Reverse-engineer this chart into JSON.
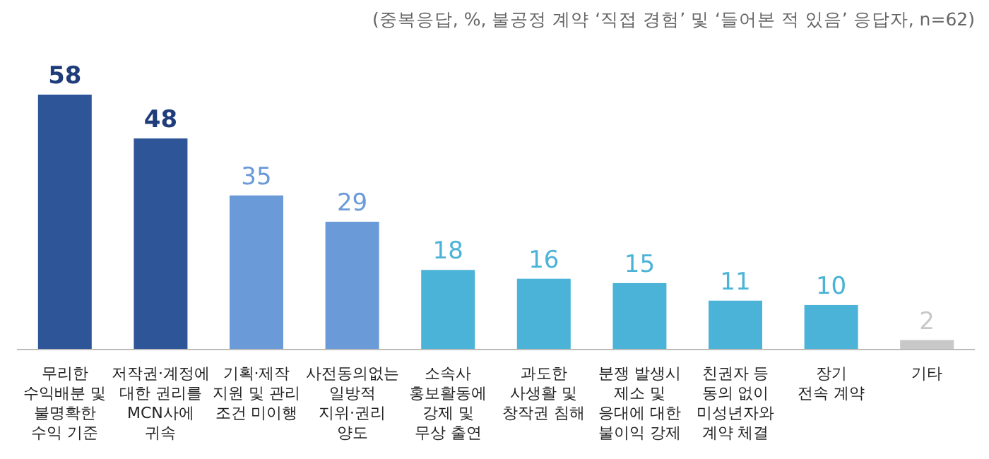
{
  "chart_data": {
    "type": "bar",
    "subtitle": "(중복응답, %, 불공정 계약 ‘직접 경험’ 및 ‘들어본 적 있음’ 응답자, n=62)",
    "categories": [
      "무리한\n수익배분 및\n불명확한\n수익 기준",
      "저작권·계정에\n대한 권리를\nMCN사에\n귀속",
      "기획·제작\n지원 및 관리\n조건 미이행",
      "사전동의없는\n일방적\n지위·권리\n양도",
      "소속사\n홍보활동에\n강제 및\n무상 출연",
      "과도한\n사생활 및\n창작권 침해",
      "분쟁 발생시\n제소 및\n응대에 대한\n불이익 강제",
      "친권자 등\n동의 없이\n미성년자와\n계약 체결",
      "장기\n전속 계약",
      "기타"
    ],
    "values": [
      58,
      48,
      35,
      29,
      18,
      16,
      15,
      11,
      10,
      2
    ],
    "colors": [
      "#2e5597",
      "#2e5597",
      "#6a9ad8",
      "#6a9ad8",
      "#4cb3d8",
      "#4cb3d8",
      "#4cb3d8",
      "#4cb3d8",
      "#4cb3d8",
      "#c8c8c8"
    ],
    "data_labels": true
  }
}
